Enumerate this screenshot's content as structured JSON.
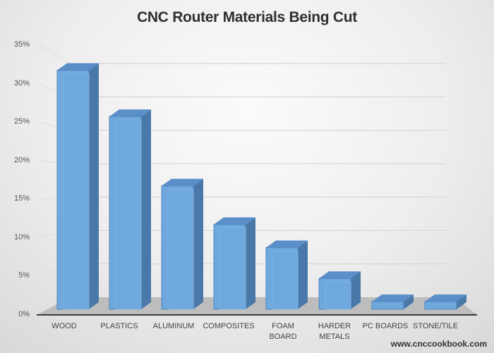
{
  "chart_data": {
    "type": "bar",
    "style": "3d-column",
    "title": "CNC Router Materials Being Cut",
    "xlabel": "",
    "ylabel": "",
    "categories": [
      "WOOD",
      "PLASTICS",
      "ALUMINUM",
      "COMPOSITES",
      "FOAM BOARD",
      "HARDER METALS",
      "PC BOARDS",
      "STONE/TILE"
    ],
    "category_lines": [
      [
        "WOOD"
      ],
      [
        "PLASTICS"
      ],
      [
        "ALUMINUM"
      ],
      [
        "COMPOSITES"
      ],
      [
        "FOAM",
        "BOARD"
      ],
      [
        "HARDER",
        "METALS"
      ],
      [
        "PC BOARDS"
      ],
      [
        "STONE/TILE"
      ]
    ],
    "values": [
      31,
      25,
      16,
      11,
      8,
      4,
      1,
      1
    ],
    "unit": "%",
    "ylim": [
      0,
      35
    ],
    "yticks": [
      "0%",
      "5%",
      "10%",
      "15%",
      "20%",
      "25%",
      "30%",
      "35%"
    ],
    "grid": true,
    "legend": null,
    "colors": {
      "bar_front": "#6fa8dc",
      "bar_side": "#4a78a8",
      "bar_top": "#5b8fc9",
      "floor": "#bdbdbd",
      "axis": "#3a3a3a"
    }
  },
  "credit": "www.cnccookbook.com"
}
